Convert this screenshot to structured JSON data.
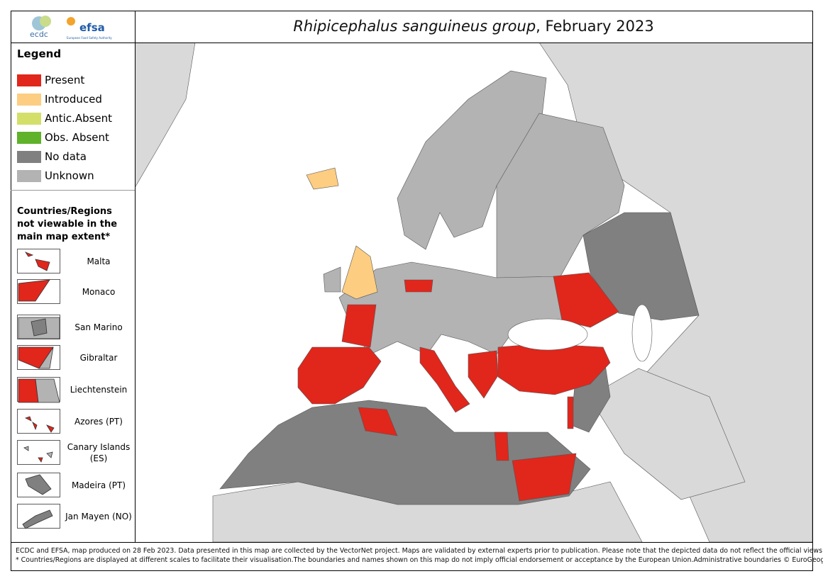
{
  "logos": {
    "ecdc": "ecdc",
    "efsa": "efsa",
    "efsa_sub": "European Food Safety Authority"
  },
  "title": {
    "italic": "Rhipicephalus sanguineus group",
    "rest": ", February 2023"
  },
  "legend": {
    "heading": "Legend",
    "items": [
      {
        "label": "Present",
        "color": "#e1261c"
      },
      {
        "label": "Introduced",
        "color": "#fdcd82"
      },
      {
        "label": "Antic.Absent",
        "color": "#d4df6a"
      },
      {
        "label": "Obs. Absent",
        "color": "#5fb22a"
      },
      {
        "label": "No data",
        "color": "#808080"
      },
      {
        "label": "Unknown",
        "color": "#b3b3b3"
      }
    ]
  },
  "insets": {
    "heading": "Countries/Regions not viewable in the main map extent*",
    "items": [
      {
        "label": "Malta"
      },
      {
        "label": "Monaco"
      },
      {
        "label": "San Marino"
      },
      {
        "label": "Gibraltar"
      },
      {
        "label": "Liechtenstein"
      },
      {
        "label": "Azores (PT)"
      },
      {
        "label": "Canary Islands (ES)"
      },
      {
        "label": "Madeira (PT)"
      },
      {
        "label": "Jan Mayen (NO)"
      }
    ]
  },
  "footer": {
    "line1": "ECDC and EFSA, map produced on 28 Feb 2023. Data presented in this map are collected by the VectorNet project. Maps are validated by external experts prior to publication. Please note that the depicted data do not reflect the official views of the countries.",
    "line2": "* Countries/Regions are displayed at different scales to facilitate their visualisation.The boundaries and names shown on this map do not imply official endorsement or acceptance by the European Union.Administrative boundaries © EuroGeographics, UNFAO."
  }
}
